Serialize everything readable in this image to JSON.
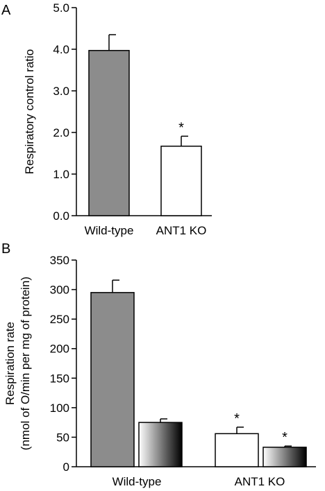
{
  "chart_data": [
    {
      "panel": "A",
      "type": "bar",
      "title": "",
      "xlabel": "",
      "ylabel": "Respiratory control ratio",
      "ylim": [
        0,
        5
      ],
      "yticks": [
        "0.0",
        "1.0",
        "2.0",
        "3.0",
        "4.0",
        "5.0"
      ],
      "categories": [
        "Wild-type",
        "ANT1 KO"
      ],
      "series": [
        {
          "values": [
            3.97,
            1.67
          ],
          "errors": [
            0.38,
            0.24
          ],
          "significance": [
            "",
            "*"
          ],
          "fill": "#8c8c8c"
        }
      ],
      "bar_fills": [
        "#8c8c8c",
        "#ffffff"
      ],
      "grid": false
    },
    {
      "panel": "B",
      "type": "bar",
      "title": "",
      "xlabel": "",
      "ylabel": "Respiration rate",
      "ylabel2": "(nmol of O/min per mg of protein)",
      "ylim": [
        0,
        350
      ],
      "yticks": [
        "0",
        "50",
        "100",
        "150",
        "200",
        "250",
        "300",
        "350"
      ],
      "categories": [
        "Wild-type",
        "ANT1 KO"
      ],
      "series": [
        {
          "values": [
            295,
            56
          ],
          "errors": [
            21,
            11
          ],
          "significance": [
            "",
            "*"
          ]
        },
        {
          "values": [
            75,
            33
          ],
          "errors": [
            6,
            2
          ],
          "significance": [
            "",
            "*"
          ]
        }
      ],
      "bar_fills": [
        [
          "#8c8c8c",
          "gradient"
        ],
        [
          "#ffffff",
          "gradient"
        ]
      ],
      "grid": false
    }
  ]
}
